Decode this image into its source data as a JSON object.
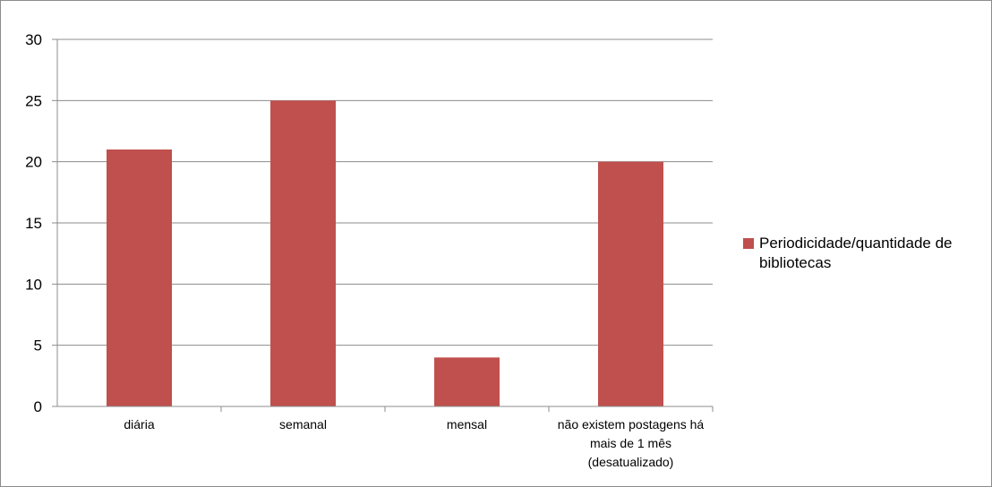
{
  "chart_data": {
    "type": "bar",
    "categories": [
      [
        "diária"
      ],
      [
        "semanal"
      ],
      [
        "mensal"
      ],
      [
        "não existem postagens há",
        "mais de 1 mês",
        "(desatualizado)"
      ]
    ],
    "series": [
      {
        "name": "Periodicidade/quantidade de bibliotecas",
        "values": [
          21,
          25,
          4,
          20
        ],
        "color": "#c0504d"
      }
    ],
    "ylim": [
      0,
      30
    ],
    "yticks": [
      0,
      5,
      10,
      15,
      20,
      25,
      30
    ],
    "grid": true,
    "legend_position": "right",
    "title": "",
    "xlabel": "",
    "ylabel": ""
  }
}
